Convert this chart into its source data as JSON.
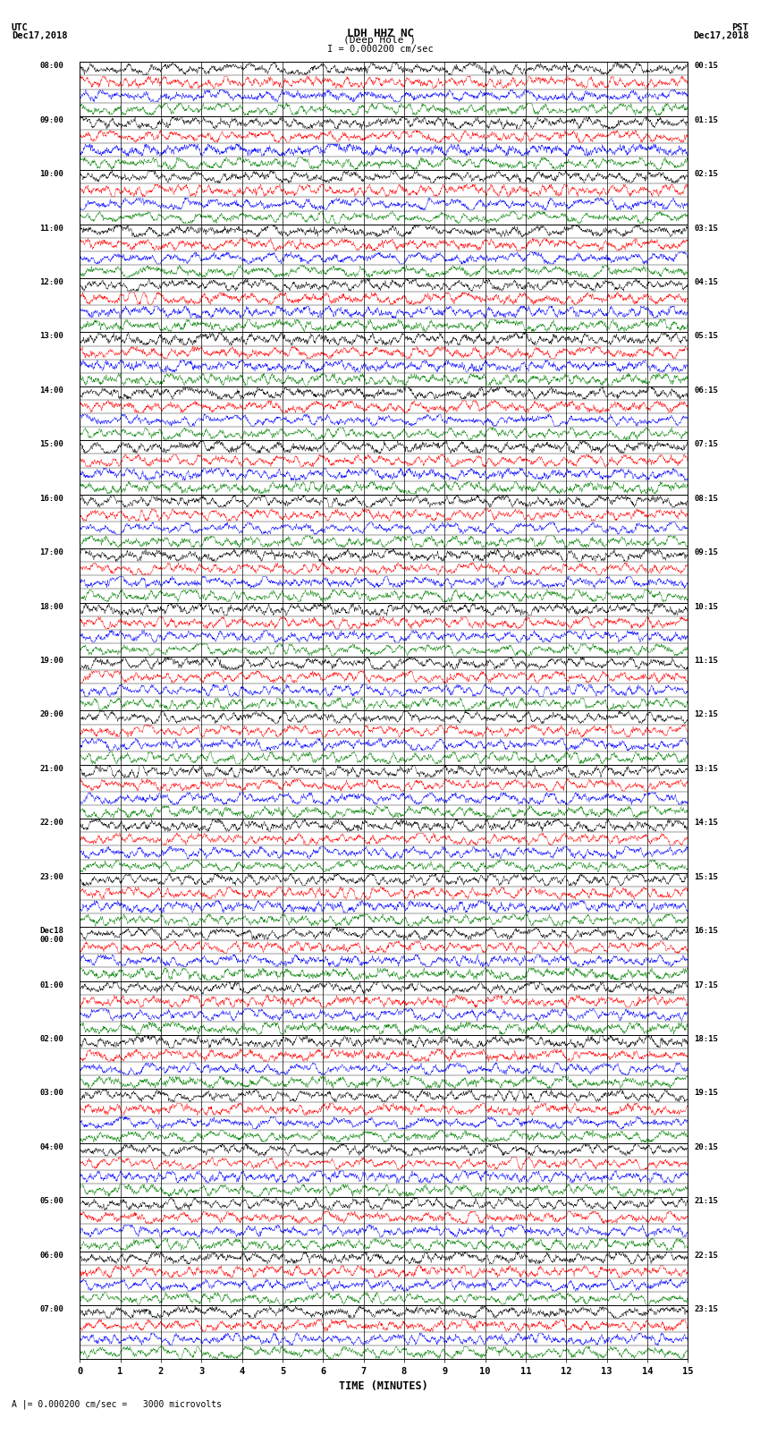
{
  "title_line1": "LDH HHZ NC",
  "title_line2": "(Deep Hole )",
  "title_line3": "I = 0.000200 cm/sec",
  "left_header_line1": "UTC",
  "left_header_line2": "Dec17,2018",
  "right_header_line1": "PST",
  "right_header_line2": "Dec17,2018",
  "xlabel": "TIME (MINUTES)",
  "footer": "A |= 0.000200 cm/sec =   3000 microvolts",
  "left_times": [
    "08:00",
    "09:00",
    "10:00",
    "11:00",
    "12:00",
    "13:00",
    "14:00",
    "15:00",
    "16:00",
    "17:00",
    "18:00",
    "19:00",
    "20:00",
    "21:00",
    "22:00",
    "23:00",
    "Dec18\n00:00",
    "01:00",
    "02:00",
    "03:00",
    "04:00",
    "05:00",
    "06:00",
    "07:00"
  ],
  "right_times": [
    "00:15",
    "01:15",
    "02:15",
    "03:15",
    "04:15",
    "05:15",
    "06:15",
    "07:15",
    "08:15",
    "09:15",
    "10:15",
    "11:15",
    "12:15",
    "13:15",
    "14:15",
    "15:15",
    "16:15",
    "17:15",
    "18:15",
    "19:15",
    "20:15",
    "21:15",
    "22:15",
    "23:15"
  ],
  "n_major_rows": 24,
  "n_traces_per_row": 4,
  "n_minutes": 15,
  "colors": [
    "black",
    "red",
    "blue",
    "green"
  ],
  "bg_color": "white",
  "amplitude": 0.44,
  "samples": 3000,
  "noise_seed": 42
}
